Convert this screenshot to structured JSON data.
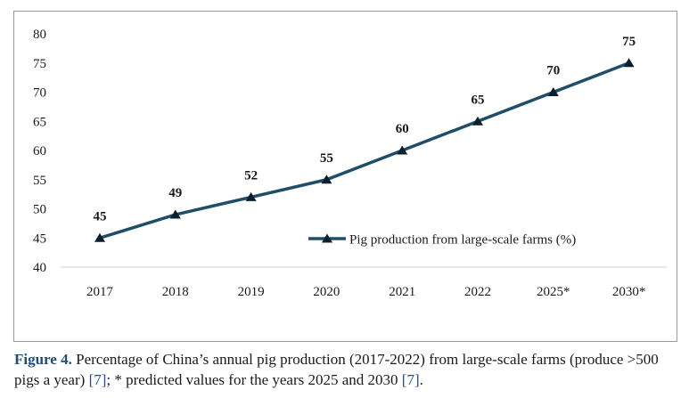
{
  "chart_data": {
    "type": "line",
    "categories": [
      "2017",
      "2018",
      "2019",
      "2020",
      "2021",
      "2022",
      "2025*",
      "2030*"
    ],
    "series": [
      {
        "name": "Pig production from large-scale farms (%)",
        "values": [
          45,
          49,
          52,
          55,
          60,
          65,
          70,
          75
        ],
        "color": "#1f4e6b",
        "marker": "triangle"
      }
    ],
    "data_labels": [
      "45",
      "49",
      "52",
      "55",
      "60",
      "65",
      "70",
      "75"
    ],
    "ylim": [
      40,
      80
    ],
    "yticks": [
      40,
      45,
      50,
      55,
      60,
      65,
      70,
      75,
      80
    ],
    "grid": false,
    "legend_position": "inside-right",
    "title": "",
    "xlabel": "",
    "ylabel": ""
  },
  "caption": {
    "figure_label": "Figure 4.",
    "text_1": " Percentage of China’s annual pig production (2017-2022) from large-scale farms (produce >500 pigs a year) ",
    "ref_1": "[7]",
    "text_2": "; * predicted values for the years 2025 and 2030 ",
    "ref_2": "[7]",
    "text_3": "."
  }
}
